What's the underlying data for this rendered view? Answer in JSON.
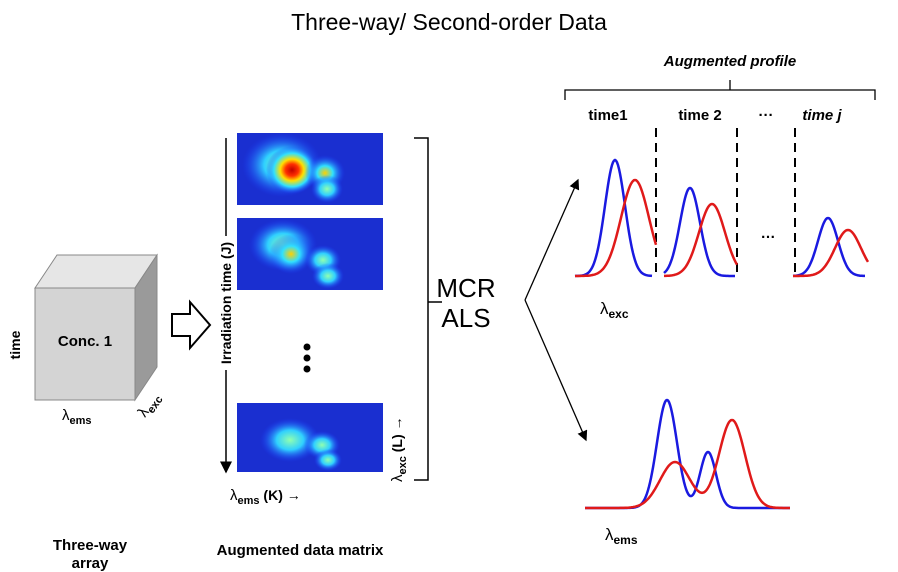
{
  "title": "Three-way/ Second-order Data",
  "cube": {
    "label": "Conc. 1",
    "axis_vertical": "time",
    "axis_bottom": {
      "symbol": "λ",
      "sub": "ems"
    },
    "axis_depth": {
      "symbol": "λ",
      "sub": "exc"
    },
    "caption": [
      "Three-way",
      "array"
    ]
  },
  "matrix": {
    "axis_vertical": "Irradiation time (J)",
    "axis_bottom": {
      "symbol": "λ",
      "sub": "ems",
      "rest": " (K) →"
    },
    "axis_side": {
      "symbol": "λ",
      "sub": "exc",
      "rest": " (L) →"
    },
    "caption": "Augmented data matrix"
  },
  "method": [
    "MCR",
    "ALS"
  ],
  "profiles": {
    "bracket_label": "Augmented profile",
    "headers": [
      "time1",
      "time 2",
      "···",
      "time j"
    ],
    "ellipsis": "…",
    "top_axis": {
      "symbol": "λ",
      "sub": "exc"
    },
    "bottom_axis": {
      "symbol": "λ",
      "sub": "ems"
    }
  }
}
